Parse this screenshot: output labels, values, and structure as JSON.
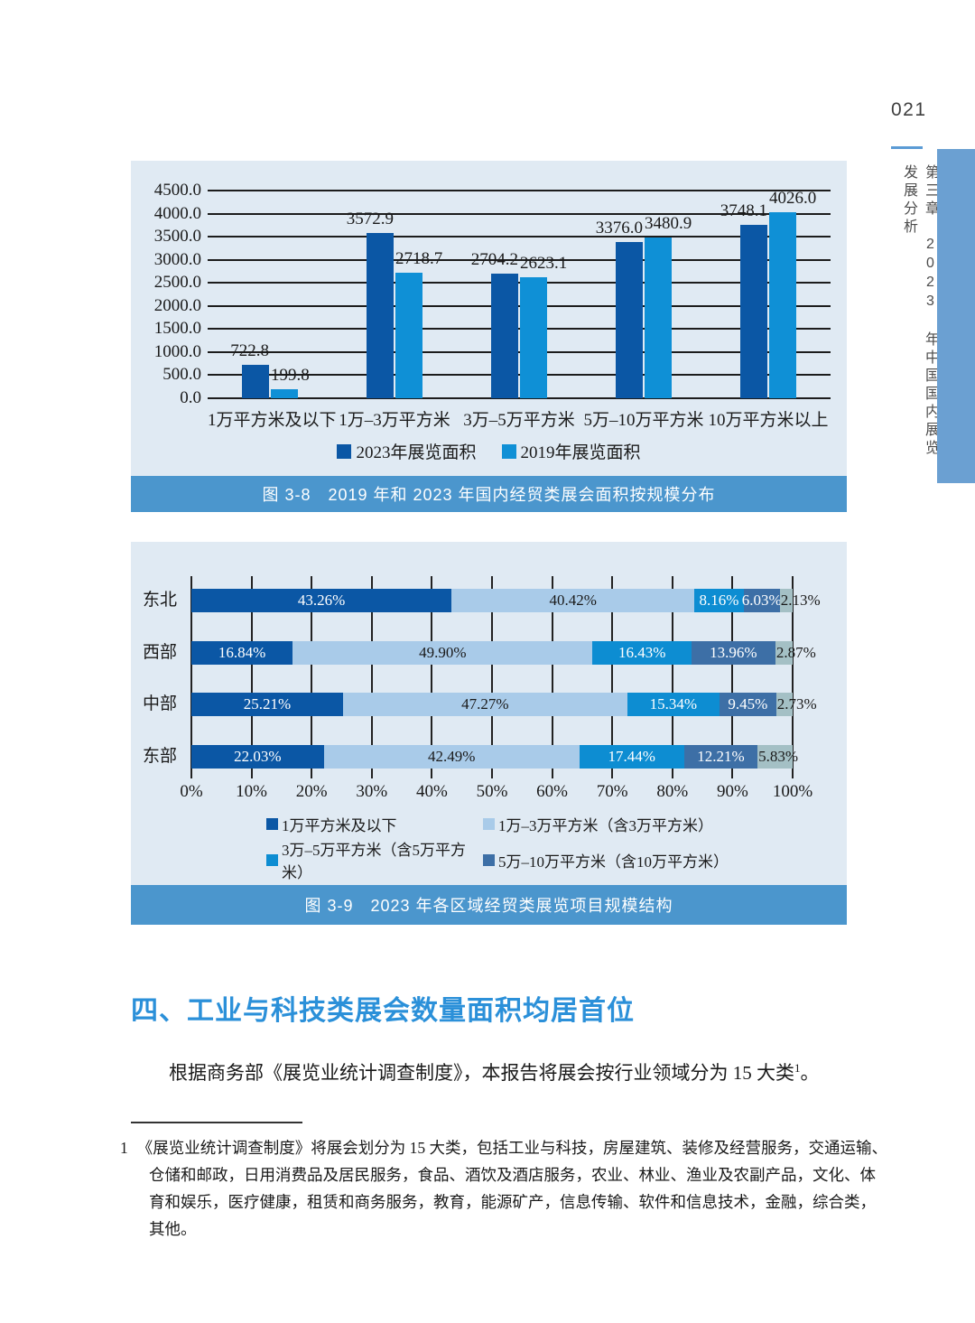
{
  "page": {
    "number": "021",
    "sidebar_title": "第三章　2023 年中国国内展览发展分析"
  },
  "section": {
    "heading": "四、工业与科技类展会数量面积均居首位",
    "paragraph_text": "根据商务部《展览业统计调查制度》，本报告将展会按行业领域分为 15 大类",
    "footnote_ref": "1",
    "paragraph_tail": "。"
  },
  "footnote": {
    "marker": "1",
    "text": "《展览业统计调查制度》将展会划分为 15 大类，包括工业与科技，房屋建筑、装修及经营服务，交通运输、仓储和邮政，日用消费品及居民服务，食品、酒饮及酒店服务，农业、林业、渔业及农副产品，文化、体育和娱乐，医疗健康，租赁和商务服务，教育，能源矿产，信息传输、软件和信息技术，金融，综合类，其他。"
  },
  "chart_data": [
    {
      "type": "bar",
      "title": "图 3-8　2019 年和 2023 年国内经贸类展会面积按规模分布",
      "categories": [
        "1万平方米及以下",
        "1万–3万平方米",
        "3万–5万平方米",
        "5万–10万平方米",
        "10万平方米以上"
      ],
      "series": [
        {
          "name": "2023年展览面积",
          "color": "#0b57a5",
          "values": [
            722.8,
            3572.9,
            2704.2,
            3376.0,
            3748.1
          ],
          "labels": [
            "722.8",
            "3572.9",
            "2704.2",
            "3376.0",
            "3748.1"
          ]
        },
        {
          "name": "2019年展览面积",
          "color": "#0f90d6",
          "values": [
            199.8,
            2718.7,
            2623.1,
            3480.9,
            4026.0
          ],
          "labels": [
            "199.8",
            "2718.7",
            "2623.1",
            "3480.9",
            "4026.0"
          ]
        }
      ],
      "ylim": [
        0,
        4500
      ],
      "yticks": [
        0,
        500,
        1000,
        1500,
        2000,
        2500,
        3000,
        3500,
        4000,
        4500
      ],
      "ytick_labels": [
        "0.0",
        "500.0",
        "1000.0",
        "1500.0",
        "2000.0",
        "2500.0",
        "3000.0",
        "3500.0",
        "4000.0",
        "4500.0"
      ],
      "grid": "horizontal",
      "legend_position": "bottom"
    },
    {
      "type": "bar",
      "orientation": "horizontal",
      "stacked": true,
      "title": "图 3-9　2023 年各区域经贸类展览项目规模结构",
      "categories": [
        "东北",
        "西部",
        "中部",
        "东部"
      ],
      "series": [
        {
          "name": "1万平方米及以下",
          "color": "#0b57a5",
          "label_color": "#ffffff",
          "values": [
            43.26,
            16.84,
            25.21,
            22.03
          ],
          "labels": [
            "43.26%",
            "16.84%",
            "25.21%",
            "22.03%"
          ]
        },
        {
          "name": "1万–3万平方米（含3万平方米）",
          "color": "#a9cbe9",
          "label_color": "#1a1a1a",
          "values": [
            40.42,
            49.9,
            47.27,
            42.49
          ],
          "labels": [
            "40.42%",
            "49.90%",
            "47.27%",
            "42.49%"
          ]
        },
        {
          "name": "3万–5万平方米（含5万平方米）",
          "color": "#0d8dd2",
          "label_color": "#ffffff",
          "values": [
            8.16,
            16.43,
            15.34,
            17.44
          ],
          "labels": [
            "8.16%",
            "16.43%",
            "15.34%",
            "17.44%"
          ]
        },
        {
          "name": "5万–10万平方米（含10万平方米）",
          "color": "#3d6fa6",
          "label_color": "#ffffff",
          "values": [
            6.03,
            13.96,
            9.45,
            12.21
          ],
          "labels": [
            "6.03%",
            "13.96%",
            "9.45%",
            "12.21%"
          ]
        },
        {
          "name": "10万平方米以上",
          "color": "#a4c0c5",
          "label_color": "#1a1a1a",
          "values": [
            2.13,
            2.87,
            2.73,
            5.83
          ],
          "labels": [
            "2.13%",
            "2.87%",
            "2.73%",
            "5.83%"
          ]
        }
      ],
      "xlim": [
        0,
        100
      ],
      "xtick_labels": [
        "0%",
        "10%",
        "20%",
        "30%",
        "40%",
        "50%",
        "60%",
        "70%",
        "80%",
        "90%",
        "100%"
      ],
      "grid": "vertical",
      "legend_position": "bottom"
    }
  ]
}
